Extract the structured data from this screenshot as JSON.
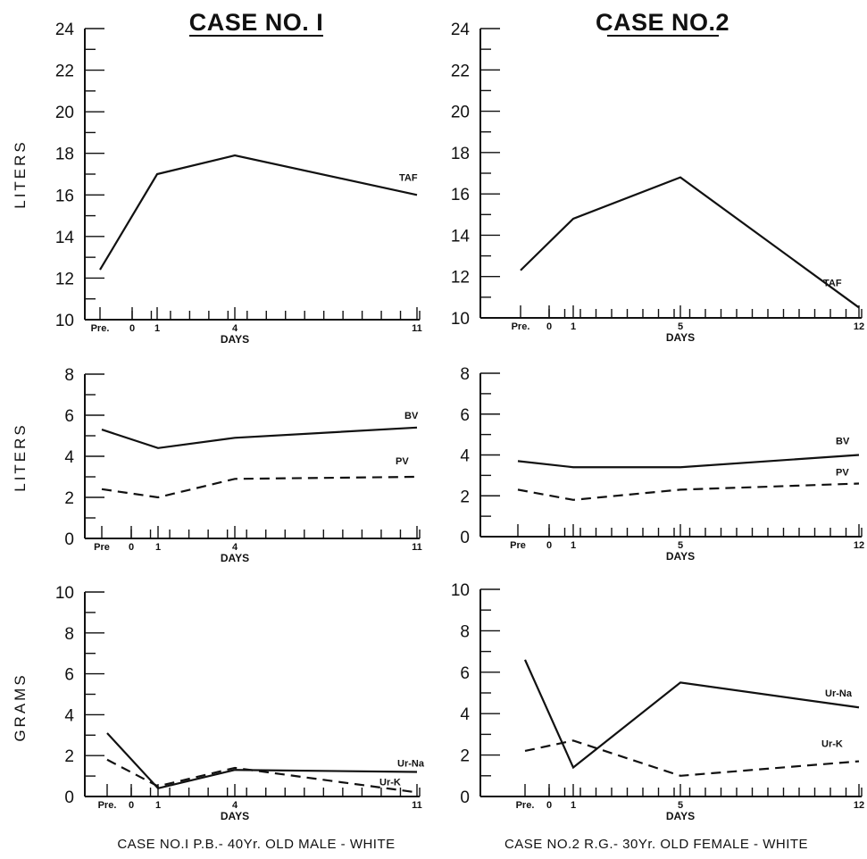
{
  "titles": [
    "CASE NO. I",
    "CASE NO.2"
  ],
  "captions": [
    "CASE NO.I  P.B.- 40Yr. OLD MALE - WHITE",
    "CASE NO.2   R.G.- 30Yr. OLD FEMALE - WHITE"
  ],
  "chart_data": [
    {
      "type": "line",
      "id": "c1-taf",
      "ylabel": "LITERS",
      "xlabel": "DAYS",
      "ylim": [
        10,
        24
      ],
      "yticks": [
        "10",
        "12",
        "14",
        "16",
        "18",
        "20",
        "22",
        "24"
      ],
      "x_tick_labels": [
        "Pre.",
        "0",
        "1",
        "4",
        "11"
      ],
      "series": [
        {
          "name": "TAF",
          "x": [
            "Pre.",
            "1",
            "4",
            "11"
          ],
          "values": [
            12.4,
            17.0,
            17.9,
            16.0
          ]
        }
      ]
    },
    {
      "type": "line",
      "id": "c2-taf",
      "ylabel": "",
      "xlabel": "DAYS",
      "ylim": [
        10,
        24
      ],
      "yticks": [
        "10",
        "12",
        "14",
        "16",
        "18",
        "20",
        "22",
        "24"
      ],
      "x_tick_labels": [
        "Pre.",
        "0",
        "1",
        "5",
        "12"
      ],
      "series": [
        {
          "name": "TAF",
          "x": [
            "Pre.",
            "1",
            "5",
            "12"
          ],
          "values": [
            12.3,
            14.8,
            16.8,
            10.5
          ]
        }
      ]
    },
    {
      "type": "line",
      "id": "c1-vol",
      "ylabel": "LITERS",
      "xlabel": "DAYS",
      "ylim": [
        0,
        8
      ],
      "yticks": [
        "0",
        "2",
        "4",
        "6",
        "8"
      ],
      "x_tick_labels": [
        "Pre",
        "0",
        "1",
        "4",
        "11"
      ],
      "series": [
        {
          "name": "BV",
          "x": [
            "Pre",
            "1",
            "4",
            "11"
          ],
          "values": [
            5.3,
            4.4,
            4.9,
            5.4
          ]
        },
        {
          "name": "PV",
          "x": [
            "Pre",
            "1",
            "4",
            "11"
          ],
          "values": [
            2.4,
            2.0,
            2.9,
            3.0
          ]
        }
      ]
    },
    {
      "type": "line",
      "id": "c2-vol",
      "ylabel": "",
      "xlabel": "DAYS",
      "ylim": [
        0,
        8
      ],
      "yticks": [
        "0",
        "2",
        "4",
        "6",
        "8"
      ],
      "x_tick_labels": [
        "Pre",
        "0",
        "1",
        "5",
        "12"
      ],
      "series": [
        {
          "name": "BV",
          "x": [
            "Pre",
            "1",
            "5",
            "12"
          ],
          "values": [
            3.7,
            3.4,
            3.4,
            4.0
          ]
        },
        {
          "name": "PV",
          "x": [
            "Pre",
            "1",
            "5",
            "12"
          ],
          "values": [
            2.3,
            1.8,
            2.3,
            2.6
          ]
        }
      ]
    },
    {
      "type": "line",
      "id": "c1-grams",
      "ylabel": "GRAMS",
      "xlabel": "DAYS",
      "ylim": [
        0,
        10
      ],
      "yticks": [
        "0",
        "2",
        "4",
        "6",
        "8",
        "10"
      ],
      "x_tick_labels": [
        "Pre.",
        "0",
        "1",
        "4",
        "11"
      ],
      "series": [
        {
          "name": "Ur-Na",
          "x": [
            "Pre.",
            "1",
            "4",
            "11"
          ],
          "values": [
            3.1,
            0.4,
            1.3,
            1.2
          ]
        },
        {
          "name": "Ur-K",
          "x": [
            "Pre.",
            "1",
            "4",
            "11"
          ],
          "values": [
            1.8,
            0.5,
            1.4,
            0.2
          ]
        }
      ]
    },
    {
      "type": "line",
      "id": "c2-grams",
      "ylabel": "",
      "xlabel": "DAYS",
      "ylim": [
        0,
        10
      ],
      "yticks": [
        "0",
        "2",
        "4",
        "6",
        "8",
        "10"
      ],
      "x_tick_labels": [
        "Pre.",
        "0",
        "1",
        "5",
        "12"
      ],
      "series": [
        {
          "name": "Ur-Na",
          "x": [
            "Pre.",
            "1",
            "5",
            "12"
          ],
          "values": [
            6.6,
            1.4,
            5.5,
            4.3
          ]
        },
        {
          "name": "Ur-K",
          "x": [
            "Pre.",
            "1",
            "5",
            "12"
          ],
          "values": [
            2.2,
            2.7,
            1.0,
            1.7
          ]
        }
      ]
    }
  ]
}
